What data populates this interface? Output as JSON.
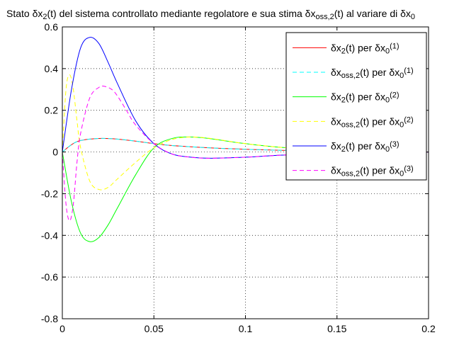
{
  "chart_data": {
    "type": "line",
    "title": "Stato δx2(t) del sistema controllato mediante regolatore e sua stima δxoss,2(t) al variare di δx0",
    "title_parts": [
      {
        "t": "Stato δx",
        "s": ""
      },
      {
        "t": "2",
        "s": "sub"
      },
      {
        "t": "(t) del sistema controllato mediante regolatore e sua stima δx",
        "s": ""
      },
      {
        "t": "oss,2",
        "s": "sub"
      },
      {
        "t": "(t) al variare di δx",
        "s": ""
      },
      {
        "t": "0",
        "s": "sub"
      }
    ],
    "xlabel": "",
    "ylabel": "",
    "xlim": [
      0,
      0.2
    ],
    "ylim": [
      -0.8,
      0.6
    ],
    "xticks": [
      0,
      0.05,
      0.1,
      0.15,
      0.2
    ],
    "xtick_labels": [
      "0",
      "0.05",
      "0.1",
      "0.15",
      "0.2"
    ],
    "yticks": [
      -0.8,
      -0.6,
      -0.4,
      -0.2,
      0,
      0.2,
      0.4,
      0.6
    ],
    "ytick_labels": [
      "-0.8",
      "-0.6",
      "-0.4",
      "-0.2",
      "0",
      "0.2",
      "0.4",
      "0.6"
    ],
    "grid": true,
    "legend_position": "top-right",
    "series": [
      {
        "name": "δx2(t) per δx0(1)",
        "legend_parts": [
          {
            "t": "δx",
            "s": ""
          },
          {
            "t": "2",
            "s": "sub"
          },
          {
            "t": "(t) per δx",
            "s": ""
          },
          {
            "t": "0",
            "s": "sub"
          },
          {
            "t": "(1)",
            "s": "sup"
          }
        ],
        "color": "#ff0000",
        "dash": "solid",
        "x": [
          0,
          0.005,
          0.01,
          0.02,
          0.03,
          0.04,
          0.05,
          0.06,
          0.08,
          0.1,
          0.12,
          0.15,
          0.2
        ],
        "y": [
          0,
          0.035,
          0.055,
          0.065,
          0.062,
          0.052,
          0.04,
          0.031,
          0.02,
          0.013,
          0.008,
          0.003,
          0.0
        ]
      },
      {
        "name": "δxoss,2(t) per δx0(1)",
        "legend_parts": [
          {
            "t": "δx",
            "s": ""
          },
          {
            "t": "oss,2",
            "s": "sub"
          },
          {
            "t": "(t) per δx",
            "s": ""
          },
          {
            "t": "0",
            "s": "sub"
          },
          {
            "t": "(1)",
            "s": "sup"
          }
        ],
        "color": "#00ffff",
        "dash": "dashed",
        "x": [
          0,
          0.005,
          0.01,
          0.02,
          0.03,
          0.04,
          0.05,
          0.06,
          0.08,
          0.1,
          0.12,
          0.15,
          0.2
        ],
        "y": [
          0,
          0.035,
          0.055,
          0.065,
          0.062,
          0.052,
          0.04,
          0.031,
          0.02,
          0.013,
          0.008,
          0.003,
          0.0
        ]
      },
      {
        "name": "δx2(t) per δx0(2)",
        "legend_parts": [
          {
            "t": "δx",
            "s": ""
          },
          {
            "t": "2",
            "s": "sub"
          },
          {
            "t": "(t) per δx",
            "s": ""
          },
          {
            "t": "0",
            "s": "sub"
          },
          {
            "t": "(2)",
            "s": "sup"
          }
        ],
        "color": "#00ff00",
        "dash": "solid",
        "x": [
          0,
          0.005,
          0.01,
          0.015,
          0.02,
          0.025,
          0.03,
          0.04,
          0.05,
          0.06,
          0.07,
          0.08,
          0.09,
          0.1,
          0.12,
          0.15,
          0.2
        ],
        "y": [
          0,
          -0.24,
          -0.39,
          -0.43,
          -0.41,
          -0.35,
          -0.27,
          -0.11,
          0.02,
          0.065,
          0.072,
          0.065,
          0.052,
          0.04,
          0.022,
          0.008,
          0.0
        ]
      },
      {
        "name": "δxoss,2(t) per δx0(2)",
        "legend_parts": [
          {
            "t": "δx",
            "s": ""
          },
          {
            "t": "oss,2",
            "s": "sub"
          },
          {
            "t": "(t) per δx",
            "s": ""
          },
          {
            "t": "0",
            "s": "sub"
          },
          {
            "t": "(2)",
            "s": "sup"
          }
        ],
        "color": "#ffff00",
        "dash": "dashed",
        "x": [
          0,
          0.002,
          0.004,
          0.006,
          0.008,
          0.01,
          0.015,
          0.02,
          0.025,
          0.03,
          0.04,
          0.05,
          0.06,
          0.07,
          0.08,
          0.09,
          0.1,
          0.12,
          0.15,
          0.2
        ],
        "y": [
          0,
          0.3,
          0.37,
          0.3,
          0.15,
          0.02,
          -0.14,
          -0.18,
          -0.17,
          -0.13,
          -0.05,
          0.02,
          0.06,
          0.072,
          0.066,
          0.053,
          0.04,
          0.022,
          0.008,
          0.0
        ]
      },
      {
        "name": "δx2(t) per δx0(3)",
        "legend_parts": [
          {
            "t": "δx",
            "s": ""
          },
          {
            "t": "2",
            "s": "sub"
          },
          {
            "t": "(t) per δx",
            "s": ""
          },
          {
            "t": "0",
            "s": "sub"
          },
          {
            "t": "(3)",
            "s": "sup"
          }
        ],
        "color": "#0000ff",
        "dash": "solid",
        "x": [
          0,
          0.005,
          0.01,
          0.015,
          0.02,
          0.025,
          0.03,
          0.04,
          0.05,
          0.06,
          0.07,
          0.08,
          0.1,
          0.12,
          0.15,
          0.2
        ],
        "y": [
          0,
          0.3,
          0.5,
          0.55,
          0.52,
          0.43,
          0.33,
          0.15,
          0.04,
          -0.01,
          -0.025,
          -0.03,
          -0.025,
          -0.015,
          -0.006,
          0.0
        ]
      },
      {
        "name": "δxoss,2(t) per δx0(3)",
        "legend_parts": [
          {
            "t": "δx",
            "s": ""
          },
          {
            "t": "oss,2",
            "s": "sub"
          },
          {
            "t": "(t) per δx",
            "s": ""
          },
          {
            "t": "0",
            "s": "sub"
          },
          {
            "t": "(3)",
            "s": "sup"
          }
        ],
        "color": "#ff00ff",
        "dash": "dashed",
        "x": [
          0,
          0.002,
          0.004,
          0.006,
          0.008,
          0.01,
          0.015,
          0.02,
          0.023,
          0.027,
          0.03,
          0.035,
          0.04,
          0.05,
          0.06,
          0.07,
          0.08,
          0.1,
          0.12,
          0.15,
          0.2
        ],
        "y": [
          0,
          -0.25,
          -0.33,
          -0.25,
          -0.05,
          0.09,
          0.26,
          0.31,
          0.315,
          0.3,
          0.27,
          0.2,
          0.13,
          0.04,
          -0.01,
          -0.025,
          -0.03,
          -0.025,
          -0.015,
          -0.006,
          0.0
        ]
      }
    ]
  }
}
